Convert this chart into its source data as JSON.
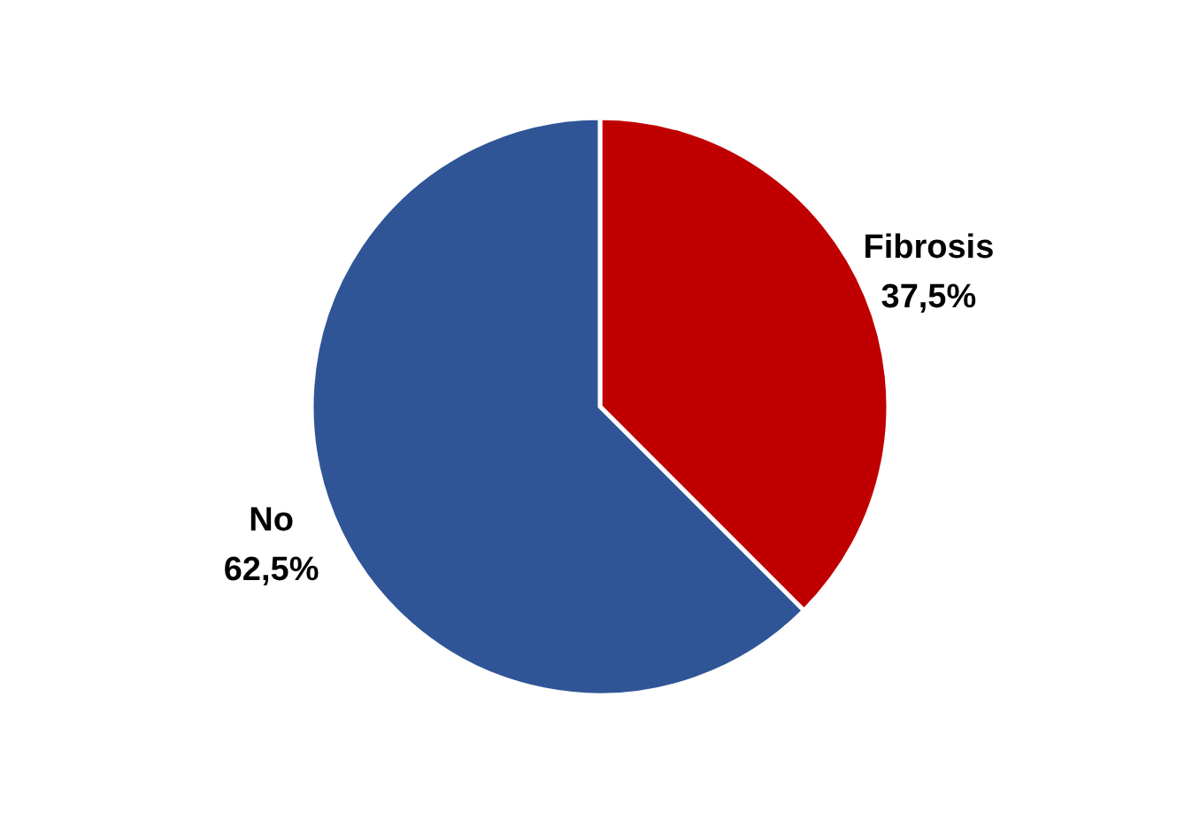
{
  "chart_data": {
    "type": "pie",
    "categories": [
      "Fibrosis",
      "No"
    ],
    "values": [
      37.5,
      62.5
    ],
    "colors": [
      "#c00000",
      "#2f5597"
    ],
    "value_labels": [
      "37,5%",
      "62,5%"
    ]
  }
}
